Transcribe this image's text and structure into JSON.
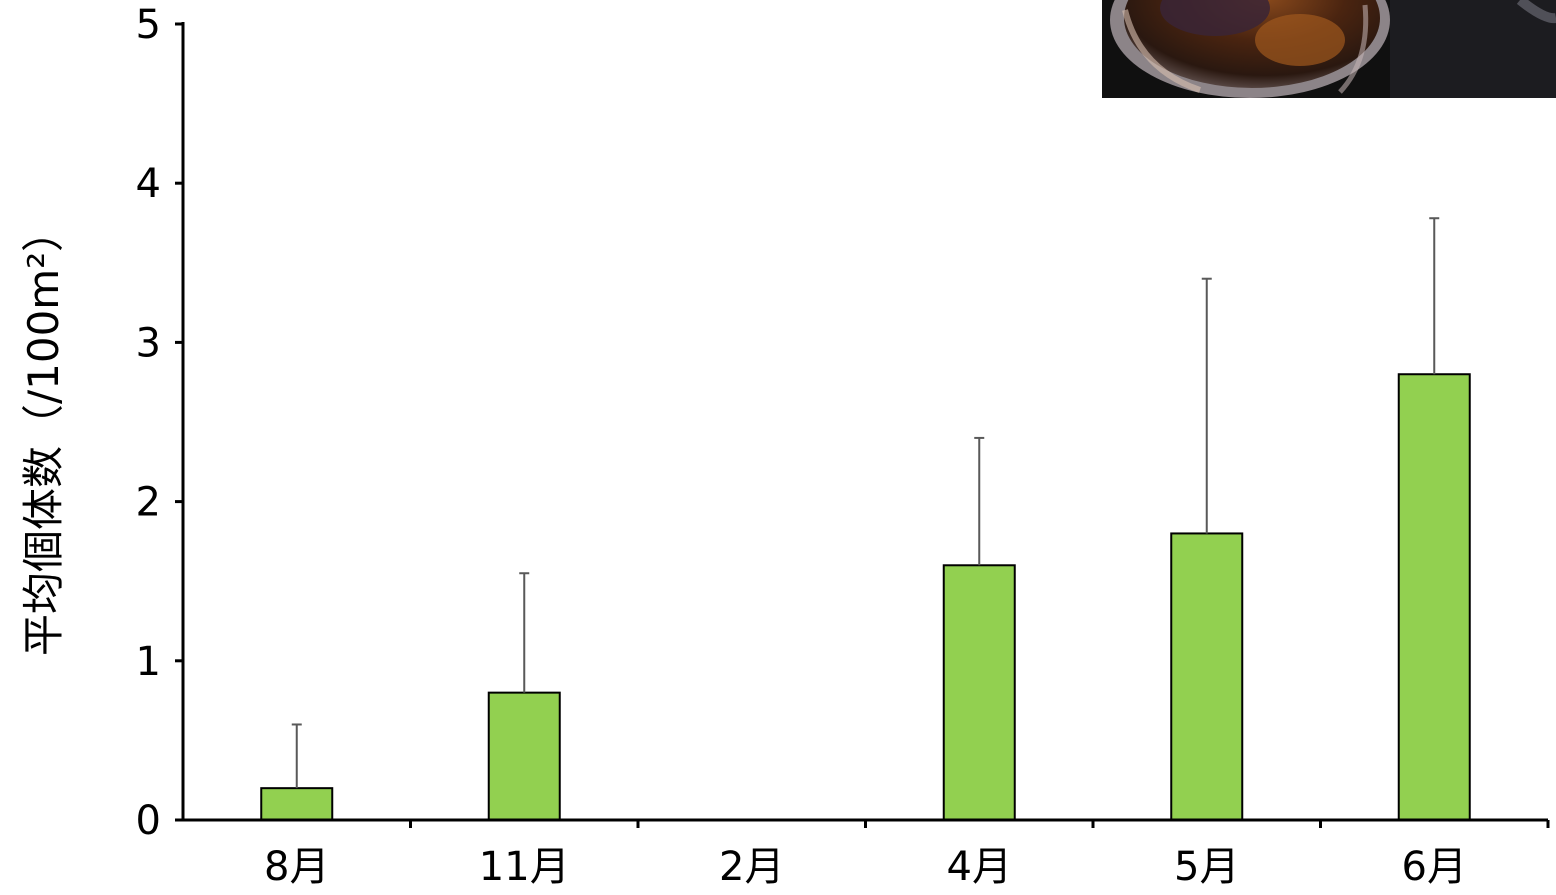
{
  "chart_data": {
    "type": "bar",
    "categories": [
      "8月",
      "11月",
      "2月",
      "4月",
      "5月",
      "6月"
    ],
    "values": [
      0.2,
      0.8,
      0,
      1.6,
      1.8,
      2.8
    ],
    "error_upper": [
      0.6,
      1.55,
      0,
      2.4,
      3.4,
      3.78
    ],
    "title": "",
    "xlabel": "",
    "ylabel": "平均個体数（/100m²）",
    "ylim": [
      0,
      5
    ],
    "yticks": [
      "0",
      "1",
      "2",
      "3",
      "4",
      "5"
    ],
    "grid": false,
    "legend": "none",
    "bar_color": "#92d050",
    "bar_edge_color": "#000000",
    "error_bar_color": "#595959"
  },
  "photo": {
    "icon": "snail-shell-photo"
  }
}
